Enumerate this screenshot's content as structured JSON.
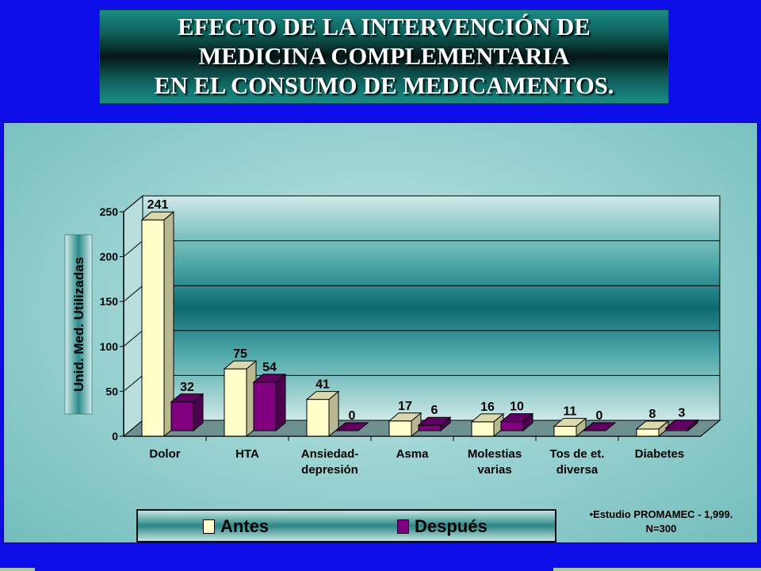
{
  "title": {
    "lines": [
      "EFECTO DE LA INTERVENCIÓN DE",
      "MEDICINA COMPLEMENTARIA",
      "EN EL CONSUMO DE MEDICAMENTOS."
    ]
  },
  "source_note": {
    "line1": "•Estudio PROMAMEC - 1,999.",
    "line2": "N=300"
  },
  "colors": {
    "background": "#0d0de8",
    "antes": "#ffffcc",
    "despues": "#800080"
  },
  "chart_data": {
    "type": "bar",
    "style": "3d clustered column",
    "categories": [
      [
        "Dolor"
      ],
      [
        "HTA"
      ],
      [
        "Ansiedad-",
        "depresión"
      ],
      [
        "Asma"
      ],
      [
        "Molestias",
        "varias"
      ],
      [
        "Tos de et.",
        "diversa"
      ],
      [
        "Diabetes"
      ]
    ],
    "series": [
      {
        "name": "Antes",
        "color": "#ffffcc",
        "values": [
          241,
          75,
          41,
          17,
          16,
          11,
          8
        ]
      },
      {
        "name": "Después",
        "color": "#800080",
        "values": [
          32,
          54,
          0,
          6,
          10,
          0,
          3
        ]
      }
    ],
    "ylabel": "Unid. Med. Utilizadas",
    "ylim": [
      0,
      250
    ],
    "yticks": [
      0,
      50,
      100,
      150,
      200,
      250
    ],
    "grid": true,
    "legend": "bottom"
  }
}
